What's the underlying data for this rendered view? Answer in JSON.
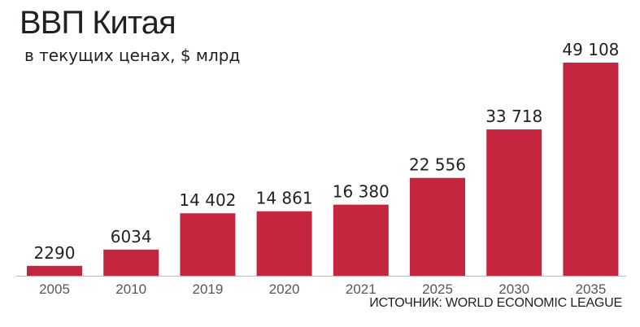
{
  "chart_data": {
    "type": "bar",
    "title": "ВВП Китая",
    "subtitle": "в текущих ценах, $ млрд",
    "xlabel": "",
    "ylabel": "",
    "categories": [
      "2005",
      "2010",
      "2019",
      "2020",
      "2021",
      "2025",
      "2030",
      "2035"
    ],
    "values": [
      2290,
      6034,
      14402,
      14861,
      16380,
      22556,
      33718,
      49108
    ],
    "value_labels": [
      "2290",
      "6034",
      "14 402",
      "14 861",
      "16 380",
      "22 556",
      "33 718",
      "49 108"
    ],
    "ylim": [
      0,
      49108
    ],
    "grid": false,
    "legend": "none",
    "source": "ИСТОЧНИК: WORLD ECONOMIC LEAGUE",
    "colors": {
      "bar": "#c4263f",
      "text": "#231f20",
      "tick": "#5a5657",
      "axis": "#b9b9b9"
    }
  }
}
